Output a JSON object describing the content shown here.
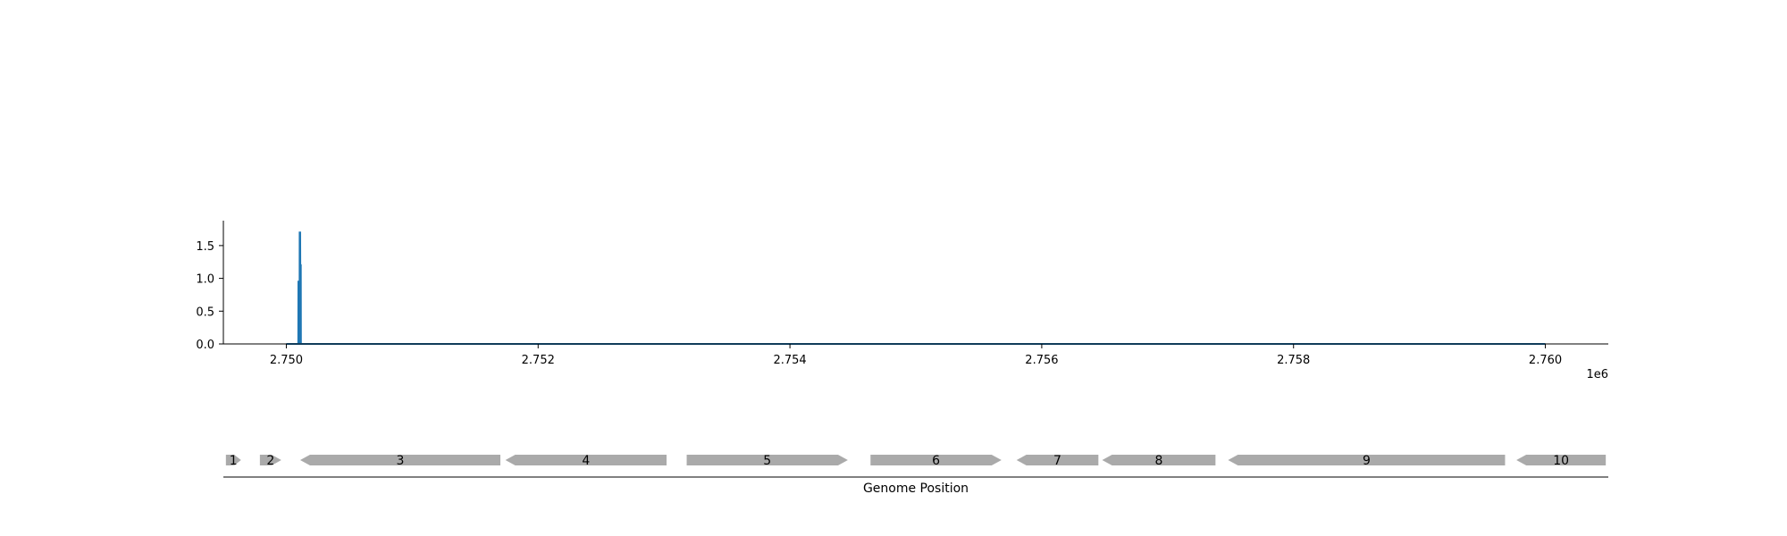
{
  "chart_data": [
    {
      "type": "line",
      "title": "",
      "xlabel": "",
      "ylabel": "",
      "x_offset_label": "1e6",
      "xlim": [
        2749500,
        2760500
      ],
      "ylim": [
        0,
        1.88
      ],
      "x_ticks": [
        2750000,
        2752000,
        2754000,
        2756000,
        2758000,
        2760000
      ],
      "x_tick_labels": [
        "2.750",
        "2.752",
        "2.754",
        "2.756",
        "2.758",
        "2.760"
      ],
      "y_ticks": [
        0,
        0.5,
        1.0,
        1.5
      ],
      "y_tick_labels": [
        "0.0",
        "0.5",
        "1.0",
        "1.5"
      ],
      "grid": false,
      "line_color": "#1f77b4",
      "series": [
        {
          "x": [
            2750000,
            2750090,
            2750095,
            2750096,
            2750100,
            2750101,
            2750105,
            2750106,
            2750110,
            2750111,
            2750115,
            2750116,
            2750200,
            2760000
          ],
          "y": [
            0,
            0,
            0,
            0.95,
            0.95,
            0,
            0,
            1.7,
            1.7,
            1.2,
            1.2,
            0,
            0,
            0
          ]
        }
      ]
    },
    {
      "type": "gene-track",
      "xlabel": "Genome Position",
      "xlim": [
        2749500,
        2760500
      ],
      "feature_color": "#aaaaaa",
      "genes": [
        {
          "label": "1",
          "start": 2749520,
          "end": 2749640,
          "strand": "+"
        },
        {
          "label": "2",
          "start": 2749790,
          "end": 2749960,
          "strand": "+"
        },
        {
          "label": "3",
          "start": 2750110,
          "end": 2751700,
          "strand": "-"
        },
        {
          "label": "4",
          "start": 2751740,
          "end": 2753020,
          "strand": "-"
        },
        {
          "label": "5",
          "start": 2753180,
          "end": 2754460,
          "strand": "+"
        },
        {
          "label": "6",
          "start": 2754640,
          "end": 2755680,
          "strand": "+"
        },
        {
          "label": "7",
          "start": 2755800,
          "end": 2756450,
          "strand": "-"
        },
        {
          "label": "8",
          "start": 2756480,
          "end": 2757380,
          "strand": "-"
        },
        {
          "label": "9",
          "start": 2757480,
          "end": 2759680,
          "strand": "-"
        },
        {
          "label": "10",
          "start": 2759770,
          "end": 2760480,
          "strand": "-"
        }
      ]
    }
  ]
}
